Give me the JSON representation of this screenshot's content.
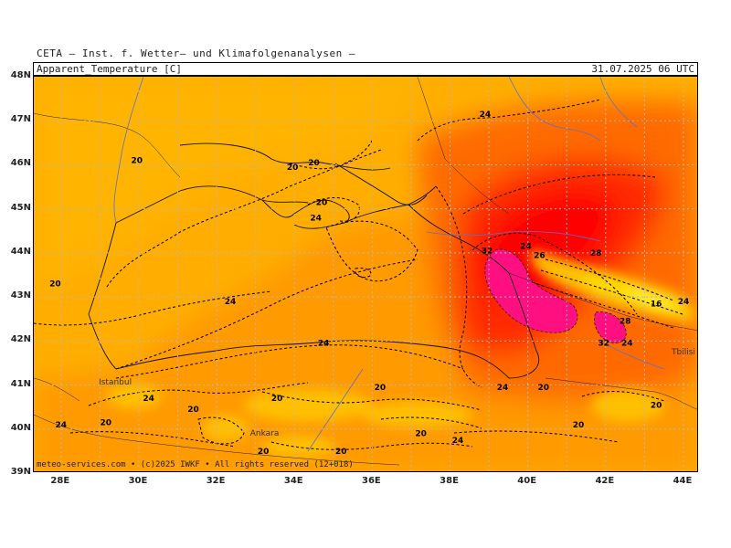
{
  "header": {
    "org": "CETA — Inst. f. Wetter— und Klimafolgenanalysen —",
    "parameter": "Apparent_Temperature [C]",
    "valid_time": "31.07.2025 06 UTC"
  },
  "footer": {
    "credit": "meteo-services.com • (c)2025 IWKF • All rights reserved (12+018)"
  },
  "axes": {
    "lat_labels": [
      "48N",
      "47N",
      "46N",
      "45N",
      "44N",
      "43N",
      "42N",
      "41N",
      "40N",
      "39N"
    ],
    "lon_labels": [
      "28E",
      "30E",
      "32E",
      "34E",
      "36E",
      "38E",
      "40E",
      "42E",
      "44E"
    ]
  },
  "contour_labels": [
    {
      "text": "20",
      "lon": 27.85,
      "lat": 43.3
    },
    {
      "text": "20",
      "lon": 29.95,
      "lat": 46.1
    },
    {
      "text": "20",
      "lon": 33.95,
      "lat": 45.95
    },
    {
      "text": "20",
      "lon": 34.5,
      "lat": 46.05
    },
    {
      "text": "20",
      "lon": 34.7,
      "lat": 45.15
    },
    {
      "text": "24",
      "lon": 34.55,
      "lat": 44.8
    },
    {
      "text": "24",
      "lon": 38.9,
      "lat": 47.15
    },
    {
      "text": "24",
      "lon": 32.35,
      "lat": 42.9
    },
    {
      "text": "24",
      "lon": 34.75,
      "lat": 41.95
    },
    {
      "text": "32",
      "lon": 38.95,
      "lat": 44.05
    },
    {
      "text": "24",
      "lon": 39.95,
      "lat": 44.15
    },
    {
      "text": "26",
      "lon": 40.3,
      "lat": 43.95
    },
    {
      "text": "28",
      "lon": 41.75,
      "lat": 44.0
    },
    {
      "text": "16",
      "lon": 43.3,
      "lat": 42.85
    },
    {
      "text": "24",
      "lon": 44.0,
      "lat": 42.9
    },
    {
      "text": "28",
      "lon": 42.5,
      "lat": 42.45
    },
    {
      "text": "32",
      "lon": 41.95,
      "lat": 41.95
    },
    {
      "text": "24",
      "lon": 42.55,
      "lat": 41.95
    },
    {
      "text": "24",
      "lon": 30.25,
      "lat": 40.7
    },
    {
      "text": "20",
      "lon": 31.4,
      "lat": 40.45
    },
    {
      "text": "20",
      "lon": 33.55,
      "lat": 40.7
    },
    {
      "text": "20",
      "lon": 36.2,
      "lat": 40.95
    },
    {
      "text": "24",
      "lon": 39.35,
      "lat": 40.95
    },
    {
      "text": "20",
      "lon": 40.4,
      "lat": 40.95
    },
    {
      "text": "20",
      "lon": 29.15,
      "lat": 40.15
    },
    {
      "text": "24",
      "lon": 28.0,
      "lat": 40.1
    },
    {
      "text": "20",
      "lon": 37.25,
      "lat": 39.9
    },
    {
      "text": "24",
      "lon": 38.2,
      "lat": 39.75
    },
    {
      "text": "20",
      "lon": 41.3,
      "lat": 40.1
    },
    {
      "text": "20",
      "lon": 43.3,
      "lat": 40.55
    },
    {
      "text": "20",
      "lon": 33.2,
      "lat": 39.5
    },
    {
      "text": "20",
      "lon": 35.2,
      "lat": 39.5
    }
  ],
  "cities": [
    {
      "name": "Istanbul",
      "lon": 28.97,
      "lat": 41.01
    },
    {
      "name": "Ankara",
      "lon": 32.86,
      "lat": 39.85
    },
    {
      "name": "Tbilisi",
      "lon": 44.8,
      "lat": 41.7
    }
  ],
  "colors": {
    "t_below_16": "#ffd000",
    "t_16_20": "#ffc000",
    "t_20_24": "#ffae00",
    "t_24_28": "#ff9a00",
    "t_28_32": "#ff6a00",
    "t_32_36": "#ff2a00",
    "t_36_plus": "#ff0000",
    "t_extreme": "#ff0f80",
    "coast_line": "#111111",
    "river_line": "#5a6fd6",
    "grid_line": "#b8b8b8"
  },
  "extent": {
    "lon_min": 27.3,
    "lon_max": 44.4,
    "lat_min": 39.0,
    "lat_max": 48.0
  }
}
